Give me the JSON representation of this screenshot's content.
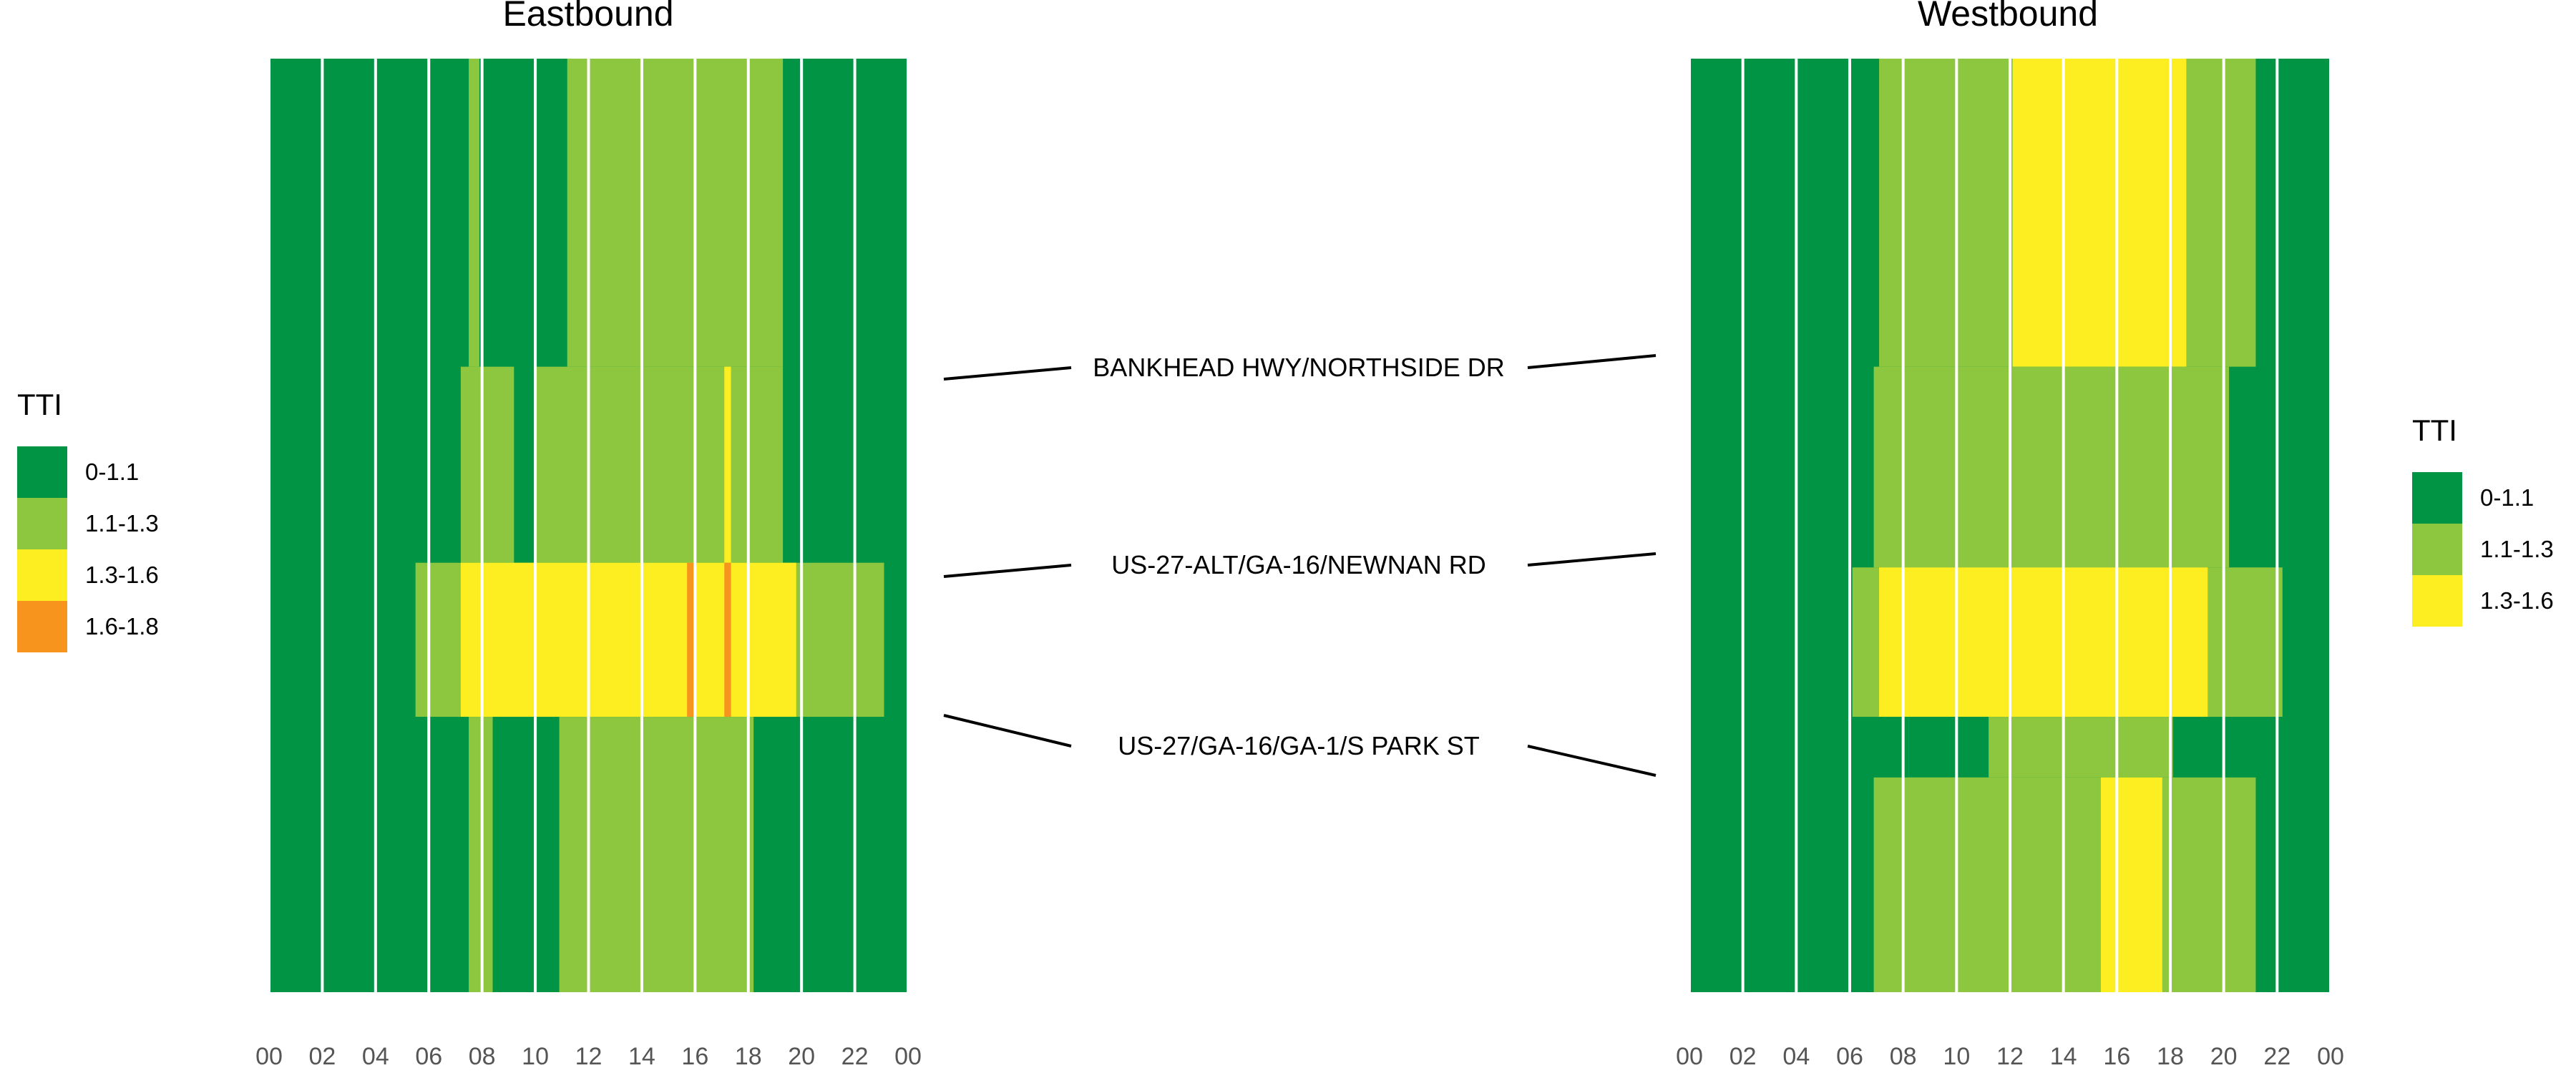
{
  "chart_data": {
    "type": "heatmap",
    "color_scale": {
      "0-1.1": "#009444",
      "1.1-1.3": "#8dc63f",
      "1.3-1.6": "#fcee21",
      "1.6-1.8": "#f7941d"
    },
    "grid": true,
    "tick_color": "#555555",
    "x_ticks": [
      "00",
      "02",
      "04",
      "06",
      "08",
      "10",
      "12",
      "14",
      "16",
      "18",
      "20",
      "22",
      "00"
    ],
    "x_range": [
      0,
      24
    ],
    "y_range": [
      0,
      1
    ],
    "segment_labels": [
      {
        "text": "BANKHEAD HWY/NORTHSIDE DR",
        "y": 0.33
      },
      {
        "text": "US-27-ALT/GA-16/NEWNAN RD",
        "y": 0.54
      },
      {
        "text": "US-27/GA-16/GA-1/S PARK ST",
        "y": 0.73
      }
    ],
    "panels": [
      {
        "title": "Eastbound",
        "legend": {
          "title": "TTI",
          "position": "left",
          "entries": [
            {
              "label": "0-1.1",
              "key": "0-1.1"
            },
            {
              "label": "1.1-1.3",
              "key": "1.1-1.3"
            },
            {
              "label": "1.3-1.6",
              "key": "1.3-1.6"
            },
            {
              "label": "1.6-1.8",
              "key": "1.6-1.8"
            }
          ]
        },
        "cells": [
          {
            "x0": 0,
            "x1": 24,
            "y0": 0,
            "y1": 1,
            "v": "0-1.1"
          },
          {
            "x0": 7.5,
            "x1": 7.9,
            "y0": 0,
            "y1": 0.33,
            "v": "1.1-1.3"
          },
          {
            "x0": 11.2,
            "x1": 19.3,
            "y0": 0,
            "y1": 0.33,
            "v": "1.1-1.3"
          },
          {
            "x0": 7.2,
            "x1": 9.2,
            "y0": 0.33,
            "y1": 0.54,
            "v": "1.1-1.3"
          },
          {
            "x0": 10,
            "x1": 19.3,
            "y0": 0.33,
            "y1": 0.54,
            "v": "1.1-1.3"
          },
          {
            "x0": 17.1,
            "x1": 17.35,
            "y0": 0.33,
            "y1": 0.54,
            "v": "1.3-1.6"
          },
          {
            "x0": 5.5,
            "x1": 23.1,
            "y0": 0.54,
            "y1": 0.705,
            "v": "1.1-1.3"
          },
          {
            "x0": 7.2,
            "x1": 19.8,
            "y0": 0.54,
            "y1": 0.705,
            "v": "1.3-1.6"
          },
          {
            "x0": 15.7,
            "x1": 15.95,
            "y0": 0.54,
            "y1": 0.705,
            "v": "1.6-1.8"
          },
          {
            "x0": 17.1,
            "x1": 17.35,
            "y0": 0.54,
            "y1": 0.705,
            "v": "1.6-1.8"
          },
          {
            "x0": 7.5,
            "x1": 8.4,
            "y0": 0.705,
            "y1": 1,
            "v": "1.1-1.3"
          },
          {
            "x0": 10.9,
            "x1": 18.2,
            "y0": 0.705,
            "y1": 1,
            "v": "1.1-1.3"
          }
        ]
      },
      {
        "title": "Westbound",
        "legend": {
          "title": "TTI",
          "position": "right",
          "entries": [
            {
              "label": "0-1.1",
              "key": "0-1.1"
            },
            {
              "label": "1.1-1.3",
              "key": "1.1-1.3"
            },
            {
              "label": "1.3-1.6",
              "key": "1.3-1.6"
            }
          ]
        },
        "cells": [
          {
            "x0": 0,
            "x1": 24,
            "y0": 0,
            "y1": 1,
            "v": "0-1.1"
          },
          {
            "x0": 7.1,
            "x1": 21.2,
            "y0": 0,
            "y1": 0.33,
            "v": "1.1-1.3"
          },
          {
            "x0": 12.1,
            "x1": 18.6,
            "y0": 0,
            "y1": 0.33,
            "v": "1.3-1.6"
          },
          {
            "x0": 6.9,
            "x1": 20.2,
            "y0": 0.33,
            "y1": 0.545,
            "v": "1.1-1.3"
          },
          {
            "x0": 6.1,
            "x1": 22.2,
            "y0": 0.545,
            "y1": 0.705,
            "v": "1.1-1.3"
          },
          {
            "x0": 7.1,
            "x1": 19.4,
            "y0": 0.545,
            "y1": 0.705,
            "v": "1.3-1.6"
          },
          {
            "x0": 8.2,
            "x1": 18.1,
            "y0": 0.705,
            "y1": 0.77,
            "v": "1.1-1.3"
          },
          {
            "x0": 8.2,
            "x1": 11.2,
            "y0": 0.705,
            "y1": 0.77,
            "v": "0-1.1"
          },
          {
            "x0": 6.9,
            "x1": 21.2,
            "y0": 0.77,
            "y1": 1,
            "v": "1.1-1.3"
          },
          {
            "x0": 15.4,
            "x1": 17.7,
            "y0": 0.77,
            "y1": 1,
            "v": "1.3-1.6"
          }
        ]
      }
    ]
  }
}
